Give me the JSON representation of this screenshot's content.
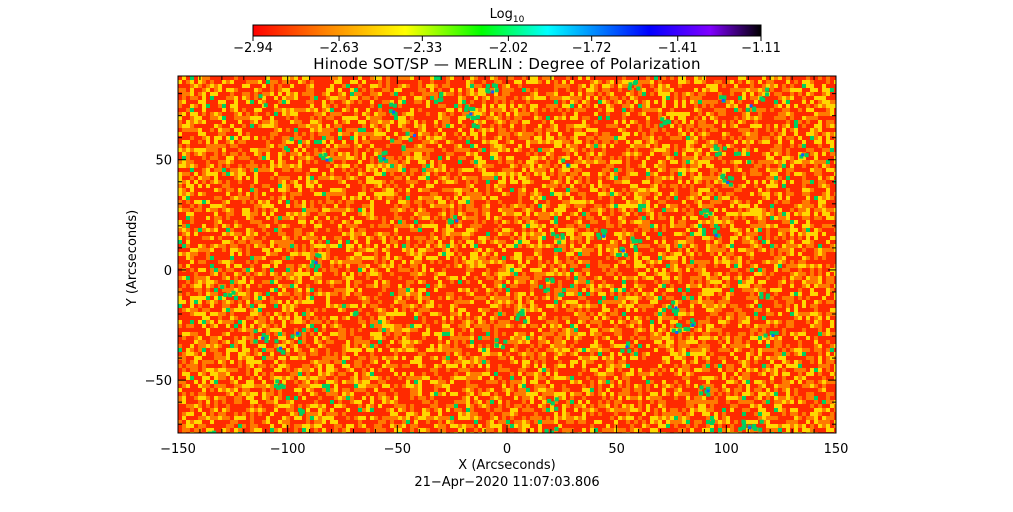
{
  "chart_data": {
    "type": "heatmap",
    "title": "Hinode SOT/SP — MERLIN : Degree of Polarization",
    "xlabel": "X (Arcseconds)",
    "ylabel": "Y (Arcseconds)",
    "xlim": [
      -150,
      150
    ],
    "ylim": [
      -74,
      88
    ],
    "x_ticks": [
      -150,
      -100,
      -50,
      0,
      50,
      100,
      150
    ],
    "x_tick_labels": [
      "−150",
      "−100",
      "−50",
      "0",
      "50",
      "100",
      "150"
    ],
    "y_ticks": [
      -50,
      0,
      50
    ],
    "y_tick_labels": [
      "−50",
      "0",
      "50"
    ],
    "timestamp": "21−Apr−2020 11:07:03.806",
    "colorbar": {
      "title_base": "Log",
      "title_sub": "10",
      "min": -2.94,
      "max": -1.11,
      "scale": "log10",
      "tick_values": [
        -2.94,
        -2.63,
        -2.33,
        -2.02,
        -1.72,
        -1.41,
        -1.11
      ],
      "tick_labels": [
        "−2.94",
        "−2.63",
        "−2.33",
        "−2.02",
        "−1.72",
        "−1.41",
        "−1.11"
      ],
      "colors": [
        "#ff0000",
        "#ff8000",
        "#ffff00",
        "#00ff00",
        "#00ffff",
        "#0000ff",
        "#8000ff",
        "#000000"
      ]
    },
    "dominant_colors": [
      "#ff2a00",
      "#ff7a00",
      "#ffd800",
      "#00d060",
      "#1060ff"
    ],
    "grid": false,
    "legend": "colorbar-top"
  }
}
